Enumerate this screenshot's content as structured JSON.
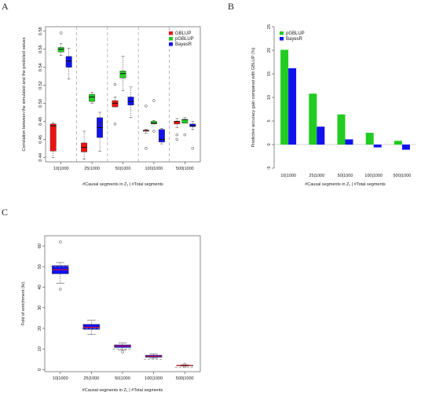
{
  "panels": {
    "a": "A",
    "b": "B",
    "c": "C"
  },
  "colors": {
    "GBLUP": "#ee1111",
    "pGBLUP": "#22cc22",
    "BayesR": "#1111ee",
    "dash": "#aaaaaa",
    "ref": "#888888"
  },
  "chart_data": [
    {
      "type": "box",
      "panel": "A",
      "title": "",
      "xlabel": "#Causal segments in Z₁ | #Total segments",
      "ylabel": "Correlation between the simulated and the predicted values",
      "ylim": [
        0.435,
        0.585
      ],
      "yticks": [
        0.44,
        0.46,
        0.48,
        0.5,
        0.52,
        0.54,
        0.56,
        0.58
      ],
      "ytick_labels": [
        "0.44",
        "0.46",
        "0.48",
        "0.50",
        "0.52",
        "0.54",
        "0.56",
        "0.58"
      ],
      "categories": [
        "10|1000",
        "25|1000",
        "50|1000",
        "100|1000",
        "500|1000"
      ],
      "legend_position": "top-right",
      "series": [
        {
          "name": "GBLUP",
          "color": "#ee1111",
          "boxes": [
            {
              "whislo": 0.44,
              "q1": 0.447,
              "med": 0.475,
              "q3": 0.477,
              "whishi": 0.478,
              "fliers": []
            },
            {
              "whislo": 0.438,
              "q1": 0.446,
              "med": 0.451,
              "q3": 0.456,
              "whishi": 0.469,
              "fliers": []
            },
            {
              "whislo": 0.496,
              "q1": 0.496,
              "med": 0.5,
              "q3": 0.503,
              "whishi": 0.507,
              "fliers": [
                0.477,
                0.521
              ]
            },
            {
              "whislo": 0.467,
              "q1": 0.469,
              "med": 0.47,
              "q3": 0.47,
              "whishi": 0.471,
              "fliers": [
                0.45,
                0.497
              ]
            },
            {
              "whislo": 0.473,
              "q1": 0.477,
              "med": 0.48,
              "q3": 0.48,
              "whishi": 0.483,
              "fliers": [
                0.46,
                0.465
              ]
            }
          ]
        },
        {
          "name": "pGBLUP",
          "color": "#22cc22",
          "boxes": [
            {
              "whislo": 0.553,
              "q1": 0.557,
              "med": 0.56,
              "q3": 0.562,
              "whishi": 0.566,
              "fliers": [
                0.578
              ]
            },
            {
              "whislo": 0.5,
              "q1": 0.502,
              "med": 0.507,
              "q3": 0.51,
              "whishi": 0.512,
              "fliers": []
            },
            {
              "whislo": 0.514,
              "q1": 0.528,
              "med": 0.533,
              "q3": 0.536,
              "whishi": 0.552,
              "fliers": []
            },
            {
              "whislo": 0.477,
              "q1": 0.477,
              "med": 0.478,
              "q3": 0.48,
              "whishi": 0.481,
              "fliers": [
                0.469,
                0.503
              ]
            },
            {
              "whislo": 0.478,
              "q1": 0.478,
              "med": 0.482,
              "q3": 0.482,
              "whishi": 0.484,
              "fliers": [
                0.465
              ]
            }
          ]
        },
        {
          "name": "BayesR",
          "color": "#1111ee",
          "boxes": [
            {
              "whislo": 0.527,
              "q1": 0.54,
              "med": 0.547,
              "q3": 0.552,
              "whishi": 0.561,
              "fliers": []
            },
            {
              "whislo": 0.447,
              "q1": 0.462,
              "med": 0.473,
              "q3": 0.484,
              "whishi": 0.49,
              "fliers": [
                0.477
              ]
            },
            {
              "whislo": 0.484,
              "q1": 0.498,
              "med": 0.502,
              "q3": 0.507,
              "whishi": 0.518,
              "fliers": []
            },
            {
              "whislo": 0.455,
              "q1": 0.457,
              "med": 0.46,
              "q3": 0.471,
              "whishi": 0.472,
              "fliers": []
            },
            {
              "whislo": 0.471,
              "q1": 0.474,
              "med": 0.475,
              "q3": 0.477,
              "whishi": 0.48,
              "fliers": [
                0.45
              ]
            }
          ]
        }
      ]
    },
    {
      "type": "bar",
      "panel": "B",
      "title": "",
      "xlabel": "#Causal segments in Z₁ | #Total segments",
      "ylabel": "Predictive accuracy gain compared with GBLUP (%)",
      "ylim": [
        -5,
        25
      ],
      "yticks": [
        -5,
        0,
        5,
        10,
        15,
        20,
        25
      ],
      "ytick_labels": [
        "-5",
        "0",
        "5",
        "10",
        "15",
        "20",
        "25"
      ],
      "categories": [
        "10|1000",
        "25|1000",
        "50|1000",
        "100|1000",
        "500|1000"
      ],
      "legend_position": "top-left",
      "series": [
        {
          "name": "pGBLUP",
          "color": "#22cc22",
          "values": [
            20.1,
            10.8,
            6.4,
            2.5,
            0.8
          ]
        },
        {
          "name": "BayesR",
          "color": "#1111ee",
          "values": [
            16.2,
            3.8,
            1.1,
            -0.6,
            -1.1
          ]
        }
      ]
    },
    {
      "type": "box",
      "panel": "C",
      "title": "",
      "xlabel": "#Causal segments in Z₁ | #Total segments",
      "ylabel": "Fold of enrichment (fe)",
      "ylim": [
        -1,
        65
      ],
      "yticks": [
        0,
        10,
        20,
        30,
        40,
        50,
        60
      ],
      "ytick_labels": [
        "0",
        "10",
        "20",
        "30",
        "40",
        "50",
        "60"
      ],
      "categories": [
        "10|1000",
        "25|1000",
        "50|1000",
        "100|1000",
        "500|1000"
      ],
      "reference_values": [
        50,
        20,
        10,
        5,
        1
      ],
      "boxes": [
        {
          "whislo": 42,
          "q1": 46.5,
          "med": 48.5,
          "q3": 50.5,
          "whishi": 52,
          "fliers": [
            62,
            39
          ]
        },
        {
          "whislo": 17,
          "q1": 19.5,
          "med": 20.5,
          "q3": 22,
          "whishi": 24,
          "fliers": []
        },
        {
          "whislo": 9.5,
          "q1": 10.7,
          "med": 11.5,
          "q3": 12,
          "whishi": 13,
          "fliers": [
            8.5
          ]
        },
        {
          "whislo": 5.5,
          "q1": 6,
          "med": 6.5,
          "q3": 7,
          "whishi": 7.5,
          "fliers": []
        },
        {
          "whislo": 1.7,
          "q1": 1.9,
          "med": 2,
          "q3": 2.1,
          "whishi": 2.3,
          "fliers": [
            1.5,
            2.6
          ]
        }
      ]
    }
  ]
}
